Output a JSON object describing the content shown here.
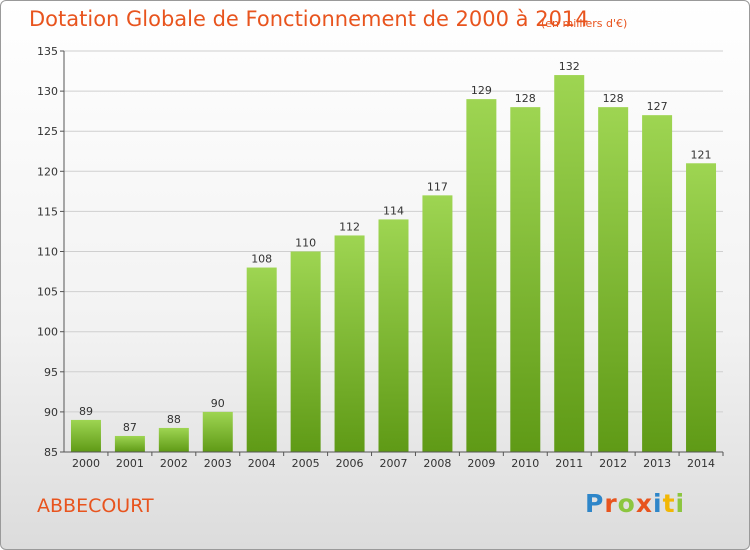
{
  "title": "Dotation Globale de Fonctionnement de 2000 à 2014",
  "unit_note": "(en milliers d'€)",
  "commune": "ABBECOURT",
  "logo": {
    "letters": [
      "P",
      "r",
      "o",
      "x",
      "i",
      "t",
      "i"
    ],
    "colors": [
      "#2e86c9",
      "#e8541e",
      "#8cc63f",
      "#e8541e",
      "#2e86c9",
      "#f2b705",
      "#8cc63f"
    ]
  },
  "colors": {
    "bar_top": "#9ed552",
    "bar_bottom": "#5f9a16",
    "title": "#e8541e"
  },
  "chart_data": {
    "type": "bar",
    "categories": [
      "2000",
      "2001",
      "2002",
      "2003",
      "2004",
      "2005",
      "2006",
      "2007",
      "2008",
      "2009",
      "2010",
      "2011",
      "2012",
      "2013",
      "2014"
    ],
    "values": [
      89,
      87,
      88,
      90,
      108,
      110,
      112,
      114,
      117,
      129,
      128,
      132,
      128,
      127,
      121
    ],
    "ylim": [
      85,
      135
    ],
    "yticks": [
      85,
      90,
      95,
      100,
      105,
      110,
      115,
      120,
      125,
      130,
      135
    ],
    "grid": true,
    "legend": "none"
  }
}
